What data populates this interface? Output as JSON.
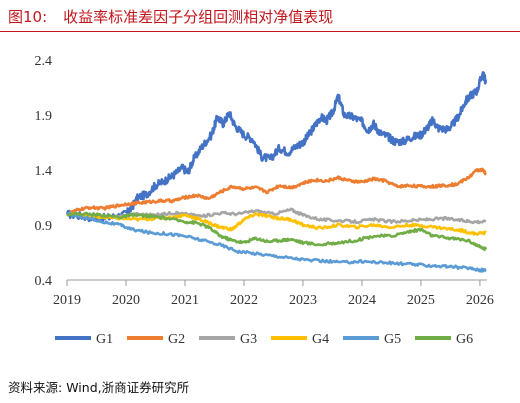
{
  "figure": {
    "label": "图10:",
    "title": "收益率标准差因子分组回测相对净值表现",
    "source_label": "资料来源:",
    "source_text": "Wind,浙商证券研究所"
  },
  "chart_data": {
    "type": "line",
    "xlim": [
      2019.0,
      2026.12
    ],
    "ylim": [
      0.4,
      2.4
    ],
    "yticks": [
      0.4,
      0.9,
      1.4,
      1.9,
      2.4
    ],
    "ytick_labels": [
      "0.4",
      "0.9",
      "1.4",
      "1.9",
      "2.4"
    ],
    "xticks": [
      2019,
      2020,
      2021,
      2022,
      2023,
      2024,
      2025,
      2026
    ],
    "xtick_labels": [
      "2019",
      "2020",
      "2021",
      "2022",
      "2023",
      "2024",
      "2025",
      "2026"
    ],
    "grid": false,
    "legend_position": "bottom",
    "series": [
      {
        "name": "G1",
        "color": "#4472c4",
        "points": [
          [
            2019.0,
            1.0
          ],
          [
            2019.25,
            0.98
          ],
          [
            2019.5,
            0.96
          ],
          [
            2019.75,
            0.97
          ],
          [
            2020.0,
            1.0
          ],
          [
            2020.1,
            1.06
          ],
          [
            2020.2,
            1.15
          ],
          [
            2020.35,
            1.18
          ],
          [
            2020.5,
            1.26
          ],
          [
            2020.65,
            1.3
          ],
          [
            2020.8,
            1.35
          ],
          [
            2020.95,
            1.42
          ],
          [
            2021.05,
            1.38
          ],
          [
            2021.15,
            1.5
          ],
          [
            2021.3,
            1.62
          ],
          [
            2021.45,
            1.72
          ],
          [
            2021.55,
            1.88
          ],
          [
            2021.65,
            1.82
          ],
          [
            2021.75,
            1.92
          ],
          [
            2021.85,
            1.8
          ],
          [
            2022.0,
            1.72
          ],
          [
            2022.15,
            1.68
          ],
          [
            2022.3,
            1.52
          ],
          [
            2022.45,
            1.5
          ],
          [
            2022.6,
            1.6
          ],
          [
            2022.75,
            1.56
          ],
          [
            2022.9,
            1.62
          ],
          [
            2023.0,
            1.65
          ],
          [
            2023.1,
            1.72
          ],
          [
            2023.2,
            1.8
          ],
          [
            2023.3,
            1.88
          ],
          [
            2023.4,
            1.85
          ],
          [
            2023.5,
            1.92
          ],
          [
            2023.6,
            2.07
          ],
          [
            2023.7,
            1.9
          ],
          [
            2023.85,
            1.88
          ],
          [
            2024.0,
            1.84
          ],
          [
            2024.1,
            1.76
          ],
          [
            2024.2,
            1.82
          ],
          [
            2024.3,
            1.74
          ],
          [
            2024.45,
            1.7
          ],
          [
            2024.55,
            1.66
          ],
          [
            2024.7,
            1.66
          ],
          [
            2024.85,
            1.7
          ],
          [
            2025.0,
            1.72
          ],
          [
            2025.1,
            1.78
          ],
          [
            2025.2,
            1.85
          ],
          [
            2025.3,
            1.78
          ],
          [
            2025.45,
            1.77
          ],
          [
            2025.55,
            1.82
          ],
          [
            2025.65,
            1.9
          ],
          [
            2025.75,
            2.02
          ],
          [
            2025.85,
            2.08
          ],
          [
            2025.95,
            2.12
          ],
          [
            2026.05,
            2.28
          ],
          [
            2026.1,
            2.2
          ]
        ]
      },
      {
        "name": "G2",
        "color": "#ed7d31",
        "points": [
          [
            2019.0,
            1.0
          ],
          [
            2019.2,
            1.04
          ],
          [
            2019.4,
            1.06
          ],
          [
            2019.6,
            1.05
          ],
          [
            2019.8,
            1.07
          ],
          [
            2020.0,
            1.09
          ],
          [
            2020.2,
            1.1
          ],
          [
            2020.4,
            1.11
          ],
          [
            2020.6,
            1.12
          ],
          [
            2020.8,
            1.12
          ],
          [
            2021.0,
            1.15
          ],
          [
            2021.2,
            1.17
          ],
          [
            2021.4,
            1.14
          ],
          [
            2021.6,
            1.2
          ],
          [
            2021.8,
            1.25
          ],
          [
            2022.0,
            1.23
          ],
          [
            2022.2,
            1.24
          ],
          [
            2022.4,
            1.2
          ],
          [
            2022.6,
            1.26
          ],
          [
            2022.8,
            1.24
          ],
          [
            2023.0,
            1.28
          ],
          [
            2023.2,
            1.31
          ],
          [
            2023.4,
            1.3
          ],
          [
            2023.6,
            1.33
          ],
          [
            2023.8,
            1.3
          ],
          [
            2024.0,
            1.29
          ],
          [
            2024.2,
            1.32
          ],
          [
            2024.4,
            1.3
          ],
          [
            2024.6,
            1.25
          ],
          [
            2024.8,
            1.26
          ],
          [
            2025.0,
            1.25
          ],
          [
            2025.2,
            1.25
          ],
          [
            2025.4,
            1.26
          ],
          [
            2025.6,
            1.27
          ],
          [
            2025.8,
            1.33
          ],
          [
            2025.95,
            1.4
          ],
          [
            2026.05,
            1.4
          ],
          [
            2026.1,
            1.36
          ]
        ]
      },
      {
        "name": "G3",
        "color": "#a5a5a5",
        "points": [
          [
            2019.0,
            1.0
          ],
          [
            2019.3,
            0.98
          ],
          [
            2019.6,
            0.97
          ],
          [
            2019.9,
            0.98
          ],
          [
            2020.2,
            1.0
          ],
          [
            2020.5,
            0.99
          ],
          [
            2020.8,
            1.01
          ],
          [
            2021.0,
            1.0
          ],
          [
            2021.3,
            0.98
          ],
          [
            2021.6,
            1.01
          ],
          [
            2021.9,
            1.0
          ],
          [
            2022.2,
            1.03
          ],
          [
            2022.5,
            1.0
          ],
          [
            2022.8,
            1.04
          ],
          [
            2023.0,
            0.99
          ],
          [
            2023.3,
            0.95
          ],
          [
            2023.6,
            0.94
          ],
          [
            2023.9,
            0.93
          ],
          [
            2024.2,
            0.95
          ],
          [
            2024.5,
            0.93
          ],
          [
            2024.8,
            0.94
          ],
          [
            2025.1,
            0.95
          ],
          [
            2025.4,
            0.96
          ],
          [
            2025.7,
            0.94
          ],
          [
            2025.9,
            0.93
          ],
          [
            2026.1,
            0.93
          ]
        ]
      },
      {
        "name": "G4",
        "color": "#ffc000",
        "points": [
          [
            2019.0,
            1.0
          ],
          [
            2019.3,
            0.99
          ],
          [
            2019.6,
            0.97
          ],
          [
            2019.9,
            0.96
          ],
          [
            2020.2,
            0.95
          ],
          [
            2020.5,
            0.96
          ],
          [
            2020.8,
            0.97
          ],
          [
            2021.0,
            0.99
          ],
          [
            2021.2,
            0.96
          ],
          [
            2021.4,
            0.92
          ],
          [
            2021.6,
            0.88
          ],
          [
            2021.8,
            0.86
          ],
          [
            2022.0,
            0.95
          ],
          [
            2022.2,
            1.0
          ],
          [
            2022.4,
            0.98
          ],
          [
            2022.6,
            0.96
          ],
          [
            2022.8,
            0.95
          ],
          [
            2023.0,
            0.9
          ],
          [
            2023.3,
            0.87
          ],
          [
            2023.6,
            0.9
          ],
          [
            2023.9,
            0.88
          ],
          [
            2024.2,
            0.9
          ],
          [
            2024.5,
            0.88
          ],
          [
            2024.8,
            0.9
          ],
          [
            2025.1,
            0.89
          ],
          [
            2025.4,
            0.87
          ],
          [
            2025.7,
            0.85
          ],
          [
            2025.9,
            0.82
          ],
          [
            2026.1,
            0.83
          ]
        ]
      },
      {
        "name": "G5",
        "color": "#5b9bd5",
        "points": [
          [
            2019.0,
            1.0
          ],
          [
            2019.3,
            0.97
          ],
          [
            2019.6,
            0.93
          ],
          [
            2019.9,
            0.9
          ],
          [
            2020.1,
            0.86
          ],
          [
            2020.4,
            0.83
          ],
          [
            2020.7,
            0.82
          ],
          [
            2021.0,
            0.8
          ],
          [
            2021.3,
            0.76
          ],
          [
            2021.6,
            0.72
          ],
          [
            2021.9,
            0.66
          ],
          [
            2022.2,
            0.64
          ],
          [
            2022.5,
            0.62
          ],
          [
            2022.8,
            0.6
          ],
          [
            2023.1,
            0.58
          ],
          [
            2023.4,
            0.57
          ],
          [
            2023.7,
            0.56
          ],
          [
            2024.0,
            0.57
          ],
          [
            2024.3,
            0.56
          ],
          [
            2024.6,
            0.55
          ],
          [
            2024.9,
            0.54
          ],
          [
            2025.2,
            0.53
          ],
          [
            2025.5,
            0.52
          ],
          [
            2025.8,
            0.51
          ],
          [
            2026.0,
            0.49
          ],
          [
            2026.1,
            0.49
          ]
        ]
      },
      {
        "name": "G6",
        "color": "#70ad47",
        "points": [
          [
            2019.0,
            1.0
          ],
          [
            2019.3,
            1.0
          ],
          [
            2019.6,
            0.99
          ],
          [
            2019.9,
            0.97
          ],
          [
            2020.1,
            0.99
          ],
          [
            2020.4,
            0.98
          ],
          [
            2020.7,
            0.96
          ],
          [
            2021.0,
            0.93
          ],
          [
            2021.2,
            0.92
          ],
          [
            2021.4,
            0.88
          ],
          [
            2021.6,
            0.8
          ],
          [
            2021.8,
            0.76
          ],
          [
            2022.0,
            0.74
          ],
          [
            2022.2,
            0.78
          ],
          [
            2022.4,
            0.75
          ],
          [
            2022.6,
            0.76
          ],
          [
            2022.8,
            0.77
          ],
          [
            2023.0,
            0.74
          ],
          [
            2023.3,
            0.72
          ],
          [
            2023.6,
            0.74
          ],
          [
            2023.9,
            0.76
          ],
          [
            2024.2,
            0.8
          ],
          [
            2024.5,
            0.8
          ],
          [
            2024.8,
            0.84
          ],
          [
            2025.0,
            0.86
          ],
          [
            2025.2,
            0.8
          ],
          [
            2025.5,
            0.78
          ],
          [
            2025.8,
            0.76
          ],
          [
            2026.0,
            0.7
          ],
          [
            2026.1,
            0.68
          ]
        ]
      }
    ]
  }
}
